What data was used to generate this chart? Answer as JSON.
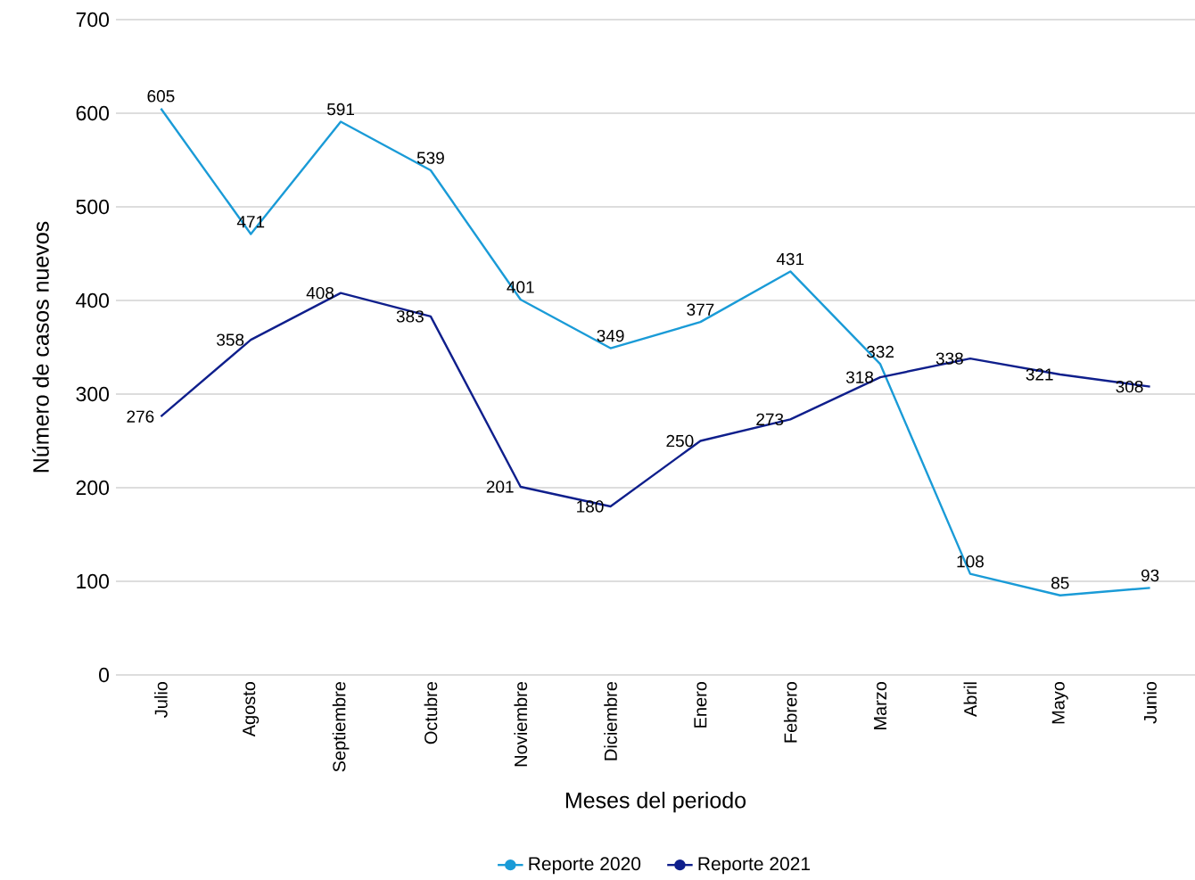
{
  "chart_data": {
    "type": "line",
    "xlabel": "Meses del periodo",
    "ylabel": "Número de casos nuevos",
    "categories": [
      "Julio",
      "Agosto",
      "Septiembre",
      "Octubre",
      "Noviembre",
      "Diciembre",
      "Enero",
      "Febrero",
      "Marzo",
      "Abril",
      "Mayo",
      "Junio"
    ],
    "series": [
      {
        "name": "Reporte 2020",
        "color": "#1a9bd7",
        "values": [
          605,
          471,
          591,
          539,
          401,
          349,
          377,
          431,
          332,
          108,
          85,
          93
        ]
      },
      {
        "name": "Reporte 2021",
        "color": "#0f1f8c",
        "values": [
          276,
          358,
          408,
          383,
          201,
          180,
          250,
          273,
          318,
          338,
          321,
          308
        ]
      }
    ],
    "ylim": [
      0,
      700
    ],
    "yticks": [
      0,
      100,
      200,
      300,
      400,
      500,
      600,
      700
    ],
    "grid": "y",
    "legend": "bottom",
    "data_labels": true
  }
}
